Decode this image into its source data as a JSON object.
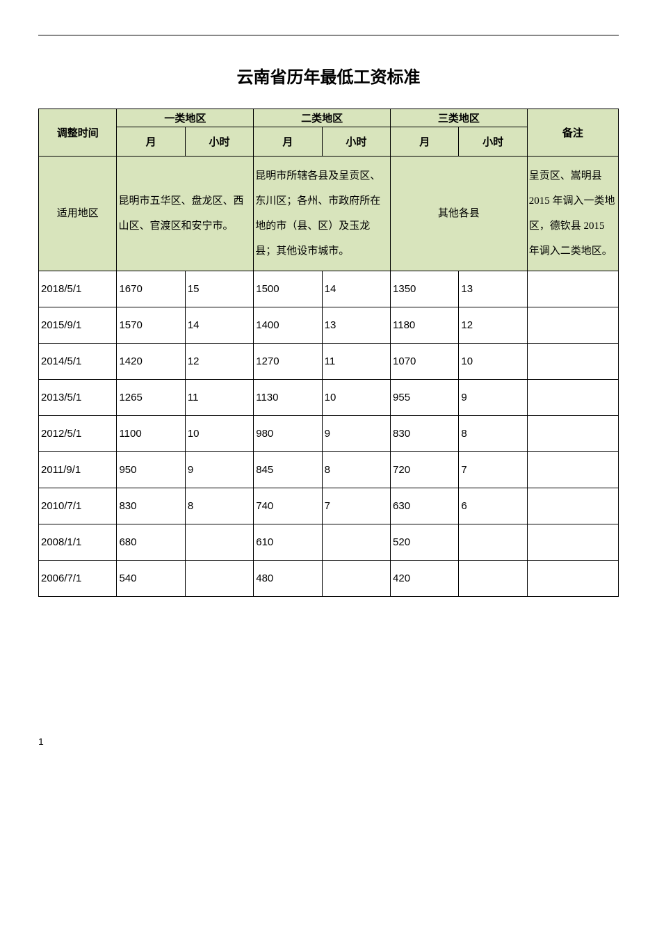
{
  "title": "云南省历年最低工资标准",
  "header": {
    "time": "调整时间",
    "zone1": "一类地区",
    "zone2": "二类地区",
    "zone3": "三类地区",
    "note": "备注",
    "month": "月",
    "hour": "小时"
  },
  "region": {
    "label": "适用地区",
    "zone1_desc": "昆明市五华区、盘龙区、西山区、官渡区和安宁市。",
    "zone2_desc": "昆明市所辖各县及呈贡区、东川区；各州、市政府所在地的市（县、区）及玉龙县；其他设市城市。",
    "zone3_desc": "其他各县",
    "note_desc": "呈贡区、嵩明县 2015 年调入一类地区，德钦县 2015 年调入二类地区。"
  },
  "rows": [
    {
      "date": "2018/5/1",
      "z1m": "1670",
      "z1h": "15",
      "z2m": "1500",
      "z2h": "14",
      "z3m": "1350",
      "z3h": "13",
      "note": ""
    },
    {
      "date": "2015/9/1",
      "z1m": "1570",
      "z1h": "14",
      "z2m": "1400",
      "z2h": "13",
      "z3m": "1180",
      "z3h": "12",
      "note": ""
    },
    {
      "date": "2014/5/1",
      "z1m": "1420",
      "z1h": "12",
      "z2m": "1270",
      "z2h": "11",
      "z3m": "1070",
      "z3h": "10",
      "note": ""
    },
    {
      "date": "2013/5/1",
      "z1m": "1265",
      "z1h": "11",
      "z2m": "1130",
      "z2h": "10",
      "z3m": "955",
      "z3h": "9",
      "note": ""
    },
    {
      "date": "2012/5/1",
      "z1m": "1100",
      "z1h": "10",
      "z2m": "980",
      "z2h": "9",
      "z3m": "830",
      "z3h": "8",
      "note": ""
    },
    {
      "date": "2011/9/1",
      "z1m": "950",
      "z1h": "9",
      "z2m": "845",
      "z2h": "8",
      "z3m": "720",
      "z3h": "7",
      "note": ""
    },
    {
      "date": "2010/7/1",
      "z1m": "830",
      "z1h": "8",
      "z2m": "740",
      "z2h": "7",
      "z3m": "630",
      "z3h": "6",
      "note": ""
    },
    {
      "date": "2008/1/1",
      "z1m": "680",
      "z1h": "",
      "z2m": "610",
      "z2h": "",
      "z3m": "520",
      "z3h": "",
      "note": ""
    },
    {
      "date": "2006/7/1",
      "z1m": "540",
      "z1h": "",
      "z2m": "480",
      "z2h": "",
      "z3m": "420",
      "z3h": "",
      "note": ""
    }
  ],
  "page_number": "1",
  "colors": {
    "header_bg": "#d8e4bc",
    "border": "#000000",
    "background": "#ffffff",
    "text": "#000000"
  },
  "typography": {
    "title_fontsize": 24,
    "body_fontsize": 15,
    "line_height_region": 2.4
  }
}
